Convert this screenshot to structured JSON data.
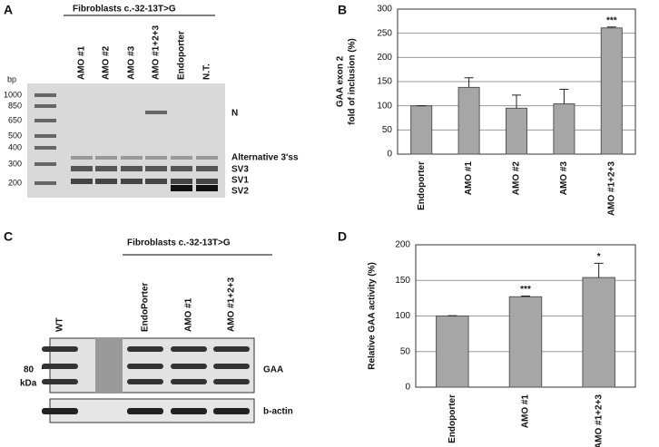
{
  "chart_data": [
    {
      "type": "bar",
      "panel_label": "B",
      "ylabel": [
        "GAA exon 2",
        "fold of inclusion (%)"
      ],
      "categories": [
        "Endoporter",
        "AMO #1",
        "AMO #2",
        "AMO #3",
        "AMO #1+2+3"
      ],
      "values": [
        100,
        138,
        95,
        104,
        261
      ],
      "errors": [
        0,
        20,
        27,
        30,
        2
      ],
      "significance": [
        null,
        null,
        null,
        null,
        "***"
      ],
      "color": "#a6a6a6",
      "ylim": [
        0,
        300
      ],
      "yticks": [
        0,
        50,
        100,
        150,
        200,
        250,
        300
      ],
      "grid": true
    },
    {
      "type": "bar",
      "panel_label": "D",
      "ylabel": [
        "Relative GAA activity (%)"
      ],
      "categories": [
        "Endoporter",
        "AMO #1",
        "AMO #1+2+3"
      ],
      "values": [
        100,
        127,
        154
      ],
      "errors": [
        0.5,
        1,
        20
      ],
      "significance": [
        null,
        "***",
        "*"
      ],
      "color": "#a6a6a6",
      "ylim": [
        0,
        200
      ],
      "yticks": [
        0,
        50,
        100,
        150,
        200
      ],
      "grid": true
    }
  ],
  "gel": {
    "panel_label": "A",
    "header": "Fibroblasts c.-32-13T>G",
    "lanes": [
      "AMO #1",
      "AMO #2",
      "AMO #3",
      "AMO #1+2+3",
      "Endoporter",
      "N.T."
    ],
    "unit": "bp",
    "ladder": [
      "1000",
      "850",
      "650",
      "500",
      "400",
      "300",
      "200"
    ],
    "band_labels": [
      "N",
      "Alternative 3'ss",
      "SV3",
      "SV1",
      "SV2"
    ]
  },
  "blot": {
    "panel_label": "C",
    "header": "Fibroblasts c.-32-13T>G",
    "lanes": [
      "WT",
      "EndoPorter",
      "AMO  #1",
      "AMO #1+2+3"
    ],
    "marker": "80",
    "marker_unit": "kDa",
    "row_labels": [
      "GAA",
      "b-actin"
    ]
  }
}
